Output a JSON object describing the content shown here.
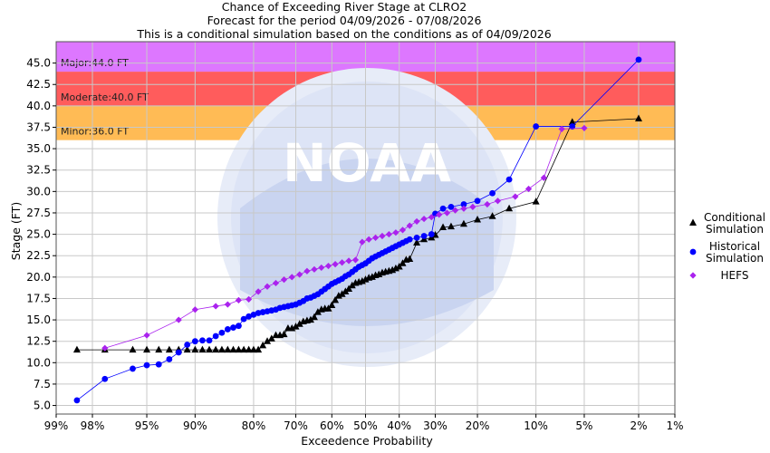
{
  "chart_data": {
    "type": "line",
    "title": "Chance of Exceeding River Stage at CLRO2",
    "subtitle_1": "Forecast for the period 04/09/2026 - 07/08/2026",
    "subtitle_2": "This is a conditional simulation based on the conditions as of 04/09/2026",
    "xlabel": "Exceedence Probability",
    "ylabel": "Stage (FT)",
    "x_scale": "normal-probability (reversed)",
    "x_ticks": [
      {
        "p": 99,
        "label": "99%"
      },
      {
        "p": 98,
        "label": "98%"
      },
      {
        "p": 95,
        "label": "95%"
      },
      {
        "p": 90,
        "label": "90%"
      },
      {
        "p": 80,
        "label": "80%"
      },
      {
        "p": 70,
        "label": "70%"
      },
      {
        "p": 60,
        "label": "60%"
      },
      {
        "p": 50,
        "label": "50%"
      },
      {
        "p": 40,
        "label": "40%"
      },
      {
        "p": 30,
        "label": "30%"
      },
      {
        "p": 20,
        "label": "20%"
      },
      {
        "p": 10,
        "label": "10%"
      },
      {
        "p": 5,
        "label": "5%"
      },
      {
        "p": 2,
        "label": "2%"
      },
      {
        "p": 1,
        "label": "1%"
      }
    ],
    "xlim": [
      99,
      1
    ],
    "ylim": [
      4,
      47.5
    ],
    "y_ticks": [
      5.0,
      7.5,
      10.0,
      12.5,
      15.0,
      17.5,
      20.0,
      22.5,
      25.0,
      27.5,
      30.0,
      32.5,
      35.0,
      37.5,
      40.0,
      42.5,
      45.0
    ],
    "y_tick_labels": [
      "5.0",
      "7.5",
      "10.0",
      "12.5",
      "15.0",
      "17.5",
      "20.0",
      "22.5",
      "25.0",
      "27.5",
      "30.0",
      "32.5",
      "35.0",
      "37.5",
      "40.0",
      "42.5",
      "45.0"
    ],
    "grid": true,
    "legend_position": "right",
    "flood_zones": [
      {
        "label": "Minor:36.0 FT",
        "from": 36.0,
        "to": 40.0,
        "color": "#ffbb55"
      },
      {
        "label": "Moderate:40.0 FT",
        "from": 40.0,
        "to": 44.0,
        "color": "#ff5c5c"
      },
      {
        "label": "Major:44.0 FT",
        "from": 44.0,
        "to": 47.5,
        "color": "#dd77ff"
      }
    ],
    "series": [
      {
        "name": "Conditional Simulation",
        "marker": "triangle",
        "color": "#000000",
        "points": [
          [
            98.5,
            11.5
          ],
          [
            97.5,
            11.5
          ],
          [
            96,
            11.5
          ],
          [
            95,
            11.5
          ],
          [
            94,
            11.5
          ],
          [
            93,
            11.5
          ],
          [
            92,
            11.5
          ],
          [
            91,
            11.5
          ],
          [
            90,
            11.5
          ],
          [
            89,
            11.5
          ],
          [
            88,
            11.5
          ],
          [
            87,
            11.5
          ],
          [
            86,
            11.5
          ],
          [
            85,
            11.5
          ],
          [
            84,
            11.5
          ],
          [
            83,
            11.5
          ],
          [
            82,
            11.5
          ],
          [
            81,
            11.5
          ],
          [
            80,
            11.5
          ],
          [
            79,
            11.5
          ],
          [
            78,
            12.0
          ],
          [
            77,
            12.5
          ],
          [
            76,
            12.8
          ],
          [
            75,
            13.2
          ],
          [
            74,
            13.2
          ],
          [
            73,
            13.3
          ],
          [
            72,
            14.0
          ],
          [
            71,
            14.0
          ],
          [
            70,
            14.2
          ],
          [
            69,
            14.5
          ],
          [
            68,
            14.8
          ],
          [
            67,
            14.9
          ],
          [
            66,
            15.0
          ],
          [
            65,
            15.3
          ],
          [
            64,
            15.9
          ],
          [
            63,
            16.2
          ],
          [
            62,
            16.3
          ],
          [
            61,
            16.3
          ],
          [
            60,
            16.7
          ],
          [
            59,
            17.3
          ],
          [
            58,
            17.8
          ],
          [
            57,
            18.0
          ],
          [
            56,
            18.3
          ],
          [
            55,
            18.6
          ],
          [
            54,
            19.0
          ],
          [
            53,
            19.3
          ],
          [
            52,
            19.4
          ],
          [
            51,
            19.5
          ],
          [
            50,
            19.7
          ],
          [
            49,
            19.9
          ],
          [
            48,
            20.0
          ],
          [
            47,
            20.2
          ],
          [
            46,
            20.3
          ],
          [
            45,
            20.5
          ],
          [
            44,
            20.6
          ],
          [
            43,
            20.7
          ],
          [
            42,
            20.8
          ],
          [
            41,
            21.0
          ],
          [
            40,
            21.2
          ],
          [
            39,
            21.6
          ],
          [
            38,
            22.0
          ],
          [
            37,
            22.1
          ],
          [
            35,
            24.0
          ],
          [
            33,
            24.4
          ],
          [
            31,
            24.6
          ],
          [
            30,
            24.9
          ],
          [
            28,
            25.8
          ],
          [
            26,
            25.9
          ],
          [
            23,
            26.2
          ],
          [
            20,
            26.7
          ],
          [
            17,
            27.1
          ],
          [
            14,
            28.0
          ],
          [
            10,
            28.8
          ],
          [
            6,
            38.1
          ],
          [
            2,
            38.5
          ]
        ]
      },
      {
        "name": "Historical Simulation",
        "marker": "circle",
        "color": "#0000ff",
        "points": [
          [
            98.5,
            5.6
          ],
          [
            97.5,
            8.1
          ],
          [
            96,
            9.3
          ],
          [
            95,
            9.7
          ],
          [
            94,
            9.8
          ],
          [
            93,
            10.4
          ],
          [
            92,
            11.2
          ],
          [
            91,
            12.1
          ],
          [
            90,
            12.5
          ],
          [
            89,
            12.6
          ],
          [
            88,
            12.6
          ],
          [
            87,
            13.1
          ],
          [
            86,
            13.5
          ],
          [
            85,
            13.9
          ],
          [
            84,
            14.1
          ],
          [
            83,
            14.3
          ],
          [
            82,
            15.1
          ],
          [
            81,
            15.4
          ],
          [
            80,
            15.6
          ],
          [
            79,
            15.8
          ],
          [
            78,
            15.9
          ],
          [
            77,
            16.0
          ],
          [
            76,
            16.1
          ],
          [
            75,
            16.2
          ],
          [
            74,
            16.4
          ],
          [
            73,
            16.5
          ],
          [
            72,
            16.6
          ],
          [
            71,
            16.7
          ],
          [
            70,
            16.8
          ],
          [
            69,
            17.0
          ],
          [
            68,
            17.2
          ],
          [
            67,
            17.5
          ],
          [
            66,
            17.6
          ],
          [
            65,
            17.8
          ],
          [
            64,
            18.0
          ],
          [
            63,
            18.3
          ],
          [
            62,
            18.6
          ],
          [
            61,
            18.9
          ],
          [
            60,
            19.2
          ],
          [
            59,
            19.4
          ],
          [
            58,
            19.6
          ],
          [
            57,
            19.8
          ],
          [
            56,
            20.1
          ],
          [
            55,
            20.3
          ],
          [
            54,
            20.6
          ],
          [
            53,
            20.9
          ],
          [
            52,
            21.2
          ],
          [
            51,
            21.4
          ],
          [
            50,
            21.6
          ],
          [
            49,
            21.9
          ],
          [
            48,
            22.2
          ],
          [
            47,
            22.4
          ],
          [
            46,
            22.6
          ],
          [
            45,
            22.8
          ],
          [
            44,
            23.0
          ],
          [
            43,
            23.2
          ],
          [
            42,
            23.4
          ],
          [
            41,
            23.6
          ],
          [
            40,
            23.8
          ],
          [
            39,
            24.0
          ],
          [
            38,
            24.2
          ],
          [
            37,
            24.4
          ],
          [
            35,
            24.6
          ],
          [
            33,
            24.8
          ],
          [
            31,
            25.0
          ],
          [
            30,
            27.4
          ],
          [
            28,
            28.0
          ],
          [
            26,
            28.2
          ],
          [
            23,
            28.5
          ],
          [
            20,
            28.9
          ],
          [
            17,
            29.8
          ],
          [
            14,
            31.4
          ],
          [
            10,
            37.6
          ],
          [
            6,
            37.6
          ],
          [
            2,
            45.4
          ]
        ]
      },
      {
        "name": "HEFS",
        "marker": "diamond",
        "color": "#aa22ee",
        "points": [
          [
            97.5,
            11.7
          ],
          [
            95,
            13.2
          ],
          [
            92,
            15.0
          ],
          [
            90,
            16.2
          ],
          [
            87,
            16.6
          ],
          [
            85,
            16.8
          ],
          [
            83,
            17.3
          ],
          [
            81,
            17.4
          ],
          [
            79,
            18.3
          ],
          [
            77,
            18.9
          ],
          [
            75,
            19.3
          ],
          [
            73,
            19.7
          ],
          [
            71,
            20.0
          ],
          [
            69,
            20.3
          ],
          [
            67,
            20.7
          ],
          [
            65,
            20.9
          ],
          [
            63,
            21.1
          ],
          [
            61,
            21.3
          ],
          [
            59,
            21.5
          ],
          [
            57,
            21.7
          ],
          [
            55,
            21.9
          ],
          [
            53,
            22.0
          ],
          [
            51,
            24.1
          ],
          [
            49,
            24.4
          ],
          [
            47,
            24.6
          ],
          [
            45,
            24.8
          ],
          [
            43,
            25.0
          ],
          [
            41,
            25.2
          ],
          [
            39,
            25.5
          ],
          [
            37,
            26.0
          ],
          [
            35,
            26.5
          ],
          [
            33,
            26.8
          ],
          [
            31,
            27.0
          ],
          [
            29,
            27.3
          ],
          [
            27,
            27.5
          ],
          [
            25,
            27.8
          ],
          [
            23,
            28.0
          ],
          [
            21,
            28.2
          ],
          [
            18,
            28.5
          ],
          [
            16,
            28.9
          ],
          [
            13,
            29.4
          ],
          [
            11,
            30.3
          ],
          [
            9,
            31.6
          ],
          [
            7,
            37.3
          ],
          [
            5,
            37.4
          ]
        ]
      }
    ]
  }
}
